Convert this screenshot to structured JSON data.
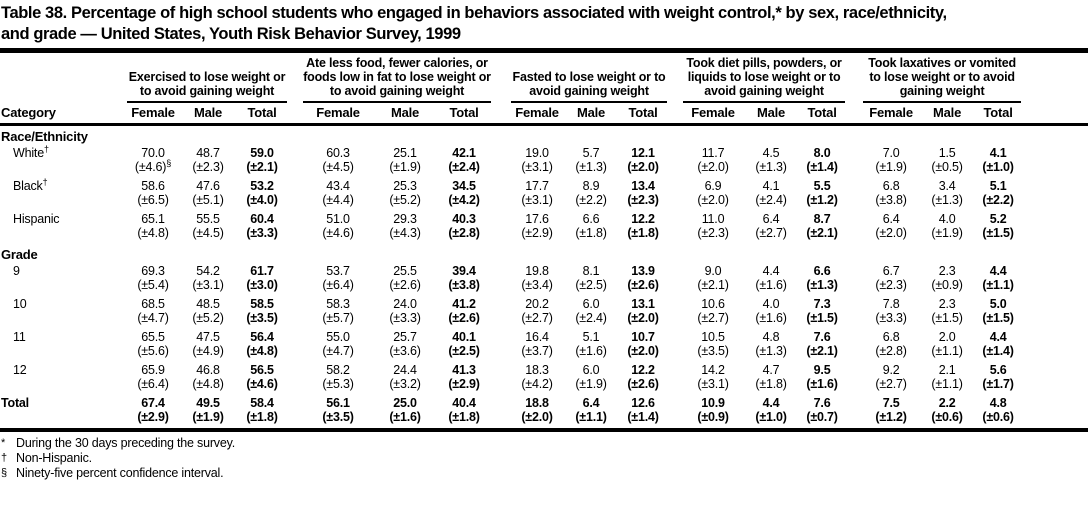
{
  "title": {
    "lines": [
      "Table 38. Percentage of high school students who engaged in behaviors associated with weight control,* by sex, race/ethnicity,",
      "and grade — United States, Youth Risk Behavior Survey, 1999"
    ]
  },
  "table": {
    "category_header": "Category",
    "sub_headers": [
      "Female",
      "Male",
      "Total"
    ],
    "groups": [
      {
        "label": "Exercised to lose weight or to avoid gaining weight"
      },
      {
        "label": "Ate less food, fewer calories, or foods low in fat to lose weight or to avoid gaining weight"
      },
      {
        "label": "Fasted to lose weight or to avoid gaining weight"
      },
      {
        "label": "Took diet pills, powders, or liquids to lose weight or to avoid gaining weight"
      },
      {
        "label": "Took laxatives or vomited to lose weight or to avoid gaining weight"
      }
    ],
    "sections": [
      {
        "name": "Race/Ethnicity",
        "rows": [
          {
            "label": "White",
            "marker": "†",
            "values": [
              "70.0",
              "48.7",
              "59.0",
              "60.3",
              "25.1",
              "42.1",
              "19.0",
              "5.7",
              "12.1",
              "11.7",
              "4.5",
              "8.0",
              "7.0",
              "1.5",
              "4.1"
            ],
            "cis": [
              "(±4.6)",
              "(±2.3)",
              "(±2.1)",
              "(±4.5)",
              "(±1.9)",
              "(±2.4)",
              "(±3.1)",
              "(±1.3)",
              "(±2.0)",
              "(±2.0)",
              "(±1.3)",
              "(±1.4)",
              "(±1.9)",
              "(±0.5)",
              "(±1.0)"
            ],
            "ci_marker": {
              "index": 0,
              "text": "§"
            }
          },
          {
            "label": "Black",
            "marker": "†",
            "values": [
              "58.6",
              "47.6",
              "53.2",
              "43.4",
              "25.3",
              "34.5",
              "17.7",
              "8.9",
              "13.4",
              "6.9",
              "4.1",
              "5.5",
              "6.8",
              "3.4",
              "5.1"
            ],
            "cis": [
              "(±6.5)",
              "(±5.1)",
              "(±4.0)",
              "(±4.4)",
              "(±5.2)",
              "(±4.2)",
              "(±3.1)",
              "(±2.2)",
              "(±2.3)",
              "(±2.0)",
              "(±2.4)",
              "(±1.2)",
              "(±3.8)",
              "(±1.3)",
              "(±2.2)"
            ]
          },
          {
            "label": "Hispanic",
            "values": [
              "65.1",
              "55.5",
              "60.4",
              "51.0",
              "29.3",
              "40.3",
              "17.6",
              "6.6",
              "12.2",
              "11.0",
              "6.4",
              "8.7",
              "6.4",
              "4.0",
              "5.2"
            ],
            "cis": [
              "(±4.8)",
              "(±4.5)",
              "(±3.3)",
              "(±4.6)",
              "(±4.3)",
              "(±2.8)",
              "(±2.9)",
              "(±1.8)",
              "(±1.8)",
              "(±2.3)",
              "(±2.7)",
              "(±2.1)",
              "(±2.0)",
              "(±1.9)",
              "(±1.5)"
            ]
          }
        ]
      },
      {
        "name": "Grade",
        "rows": [
          {
            "label": "9",
            "values": [
              "69.3",
              "54.2",
              "61.7",
              "53.7",
              "25.5",
              "39.4",
              "19.8",
              "8.1",
              "13.9",
              "9.0",
              "4.4",
              "6.6",
              "6.7",
              "2.3",
              "4.4"
            ],
            "cis": [
              "(±5.4)",
              "(±3.1)",
              "(±3.0)",
              "(±6.4)",
              "(±2.6)",
              "(±3.8)",
              "(±3.4)",
              "(±2.5)",
              "(±2.6)",
              "(±2.1)",
              "(±1.6)",
              "(±1.3)",
              "(±2.3)",
              "(±0.9)",
              "(±1.1)"
            ]
          },
          {
            "label": "10",
            "values": [
              "68.5",
              "48.5",
              "58.5",
              "58.3",
              "24.0",
              "41.2",
              "20.2",
              "6.0",
              "13.1",
              "10.6",
              "4.0",
              "7.3",
              "7.8",
              "2.3",
              "5.0"
            ],
            "cis": [
              "(±4.7)",
              "(±5.2)",
              "(±3.5)",
              "(±5.7)",
              "(±3.3)",
              "(±2.6)",
              "(±2.7)",
              "(±2.4)",
              "(±2.0)",
              "(±2.7)",
              "(±1.6)",
              "(±1.5)",
              "(±3.3)",
              "(±1.5)",
              "(±1.5)"
            ]
          },
          {
            "label": "11",
            "values": [
              "65.5",
              "47.5",
              "56.4",
              "55.0",
              "25.7",
              "40.1",
              "16.4",
              "5.1",
              "10.7",
              "10.5",
              "4.8",
              "7.6",
              "6.8",
              "2.0",
              "4.4"
            ],
            "cis": [
              "(±5.6)",
              "(±4.9)",
              "(±4.8)",
              "(±4.7)",
              "(±3.6)",
              "(±2.5)",
              "(±3.7)",
              "(±1.6)",
              "(±2.0)",
              "(±3.5)",
              "(±1.3)",
              "(±2.1)",
              "(±2.8)",
              "(±1.1)",
              "(±1.4)"
            ]
          },
          {
            "label": "12",
            "values": [
              "65.9",
              "46.8",
              "56.5",
              "58.2",
              "24.4",
              "41.3",
              "18.3",
              "6.0",
              "12.2",
              "14.2",
              "4.7",
              "9.5",
              "9.2",
              "2.1",
              "5.6"
            ],
            "cis": [
              "(±6.4)",
              "(±4.8)",
              "(±4.6)",
              "(±5.3)",
              "(±3.2)",
              "(±2.9)",
              "(±4.2)",
              "(±1.9)",
              "(±2.6)",
              "(±3.1)",
              "(±1.8)",
              "(±1.6)",
              "(±2.7)",
              "(±1.1)",
              "(±1.7)"
            ]
          }
        ]
      }
    ],
    "total_row": {
      "label": "Total",
      "values": [
        "67.4",
        "49.5",
        "58.4",
        "56.1",
        "25.0",
        "40.4",
        "18.8",
        "6.4",
        "12.6",
        "10.9",
        "4.4",
        "7.6",
        "7.5",
        "2.2",
        "4.8"
      ],
      "cis": [
        "(±2.9)",
        "(±1.9)",
        "(±1.8)",
        "(±3.5)",
        "(±1.6)",
        "(±1.8)",
        "(±2.0)",
        "(±1.1)",
        "(±1.4)",
        "(±0.9)",
        "(±1.0)",
        "(±0.7)",
        "(±1.2)",
        "(±0.6)",
        "(±0.6)"
      ]
    }
  },
  "footnotes": [
    {
      "marker": "*",
      "text": "During the 30 days preceding the survey."
    },
    {
      "marker": "†",
      "text": "Non-Hispanic."
    },
    {
      "marker": "§",
      "text": "Ninety-five percent confidence interval."
    }
  ]
}
